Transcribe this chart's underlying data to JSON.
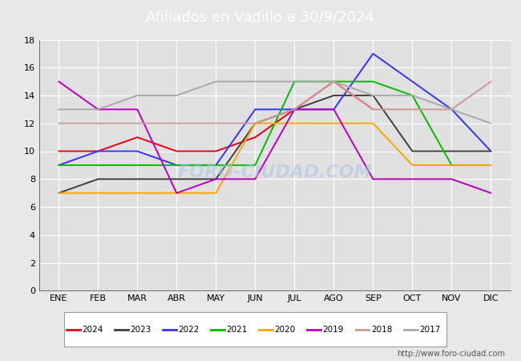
{
  "title": "Afiliados en Vadillo a 30/9/2024",
  "months": [
    "ENE",
    "FEB",
    "MAR",
    "ABR",
    "MAY",
    "JUN",
    "JUL",
    "AGO",
    "SEP",
    "OCT",
    "NOV",
    "DIC"
  ],
  "series": {
    "2024": {
      "color": "#e8000d",
      "data": [
        10,
        10,
        11,
        10,
        10,
        11,
        13,
        15,
        13,
        null,
        null,
        null
      ]
    },
    "2023": {
      "color": "#404040",
      "data": [
        7,
        8,
        8,
        8,
        8,
        12,
        13,
        14,
        14,
        10,
        10,
        10
      ]
    },
    "2022": {
      "color": "#3333ff",
      "data": [
        9,
        10,
        10,
        9,
        9,
        13,
        13,
        13,
        17,
        15,
        13,
        10
      ]
    },
    "2021": {
      "color": "#00bb00",
      "data": [
        9,
        9,
        9,
        9,
        9,
        9,
        15,
        15,
        15,
        14,
        9,
        9
      ]
    },
    "2020": {
      "color": "#ffa500",
      "data": [
        7,
        7,
        7,
        7,
        7,
        12,
        12,
        12,
        12,
        9,
        9,
        9
      ]
    },
    "2019": {
      "color": "#bb00bb",
      "data": [
        15,
        13,
        13,
        7,
        8,
        8,
        13,
        13,
        8,
        8,
        8,
        7
      ]
    },
    "2018": {
      "color": "#cc9999",
      "data": [
        12,
        12,
        12,
        12,
        12,
        12,
        13,
        15,
        13,
        13,
        13,
        15
      ]
    },
    "2017": {
      "color": "#aaaaaa",
      "data": [
        13,
        13,
        14,
        14,
        15,
        15,
        15,
        15,
        14,
        14,
        13,
        12
      ]
    }
  },
  "ylim": [
    0,
    18
  ],
  "yticks": [
    0,
    2,
    4,
    6,
    8,
    10,
    12,
    14,
    16,
    18
  ],
  "footer_text": "http://www.foro-ciudad.com",
  "watermark": "FORO-CIUDAD.COM",
  "header_bg": "#5b8dd9",
  "bg_color": "#e8e8e8",
  "plot_bg": "#e0e0e0",
  "grid_color": "#ffffff",
  "legend_years": [
    "2024",
    "2023",
    "2022",
    "2021",
    "2020",
    "2019",
    "2018",
    "2017"
  ]
}
